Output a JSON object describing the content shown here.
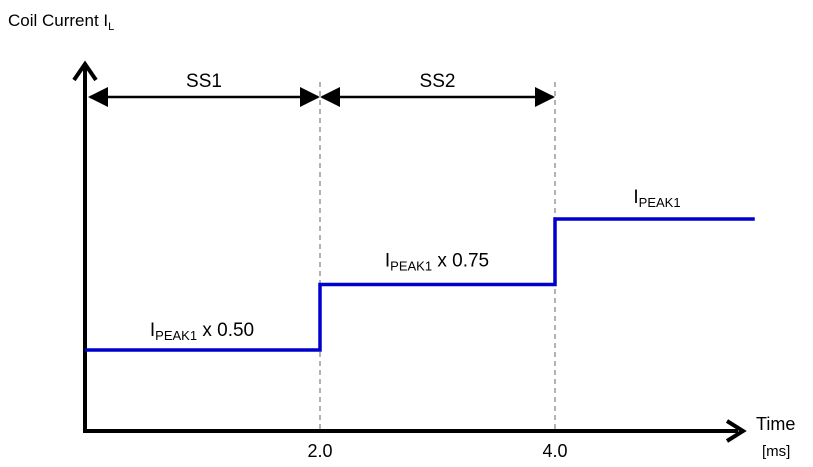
{
  "y_axis_label": {
    "text": "Coil Current I",
    "subscript": "L"
  },
  "x_axis_label": {
    "text": "Time",
    "unit": "[ms]"
  },
  "x_ticks": [
    "2.0",
    "4.0"
  ],
  "phases": [
    {
      "label": "SS1",
      "start": 0,
      "end": 2.0
    },
    {
      "label": "SS2",
      "start": 2.0,
      "end": 4.0
    }
  ],
  "current_levels": [
    {
      "prefix": "I",
      "subscript": "PEAK1",
      "suffix": " x 0.50",
      "start": 0,
      "end": 2.0,
      "value": 0.5
    },
    {
      "prefix": "I",
      "subscript": "PEAK1",
      "suffix": " x 0.75",
      "start": 2.0,
      "end": 4.0,
      "value": 0.75
    },
    {
      "prefix": "I",
      "subscript": "PEAK1",
      "suffix": "",
      "start": 4.0,
      "end": 5.7,
      "value": 1.0
    }
  ],
  "colors": {
    "current_line": "#0000cc",
    "axis": "#000000",
    "guide": "#888888"
  }
}
